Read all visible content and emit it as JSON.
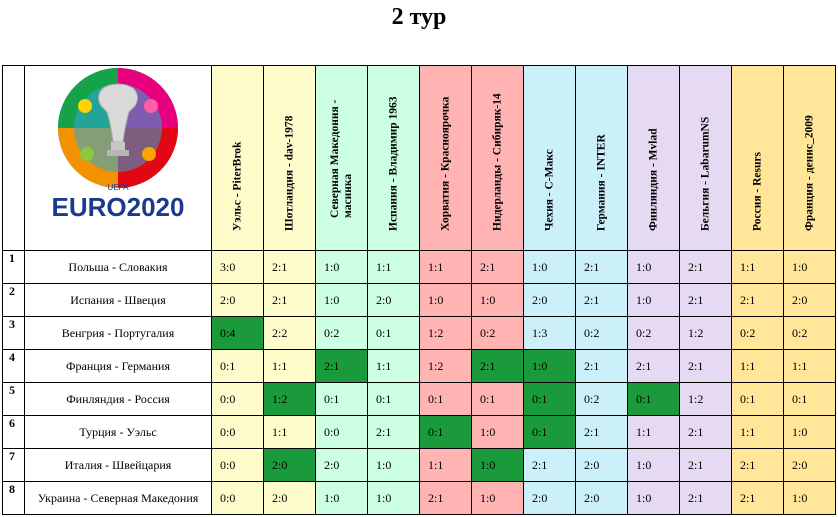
{
  "title": "2 тур",
  "logo": {
    "brand": "UEFA",
    "name": "EURO2020"
  },
  "colors": {
    "yellow": "#fffccc",
    "green": "#ccffe4",
    "pink": "#ffb3b3",
    "cyan": "#ccf0fa",
    "lilac": "#e6d9f2",
    "gold": "#ffe699",
    "hit": "#1a9a3a"
  },
  "columns": [
    {
      "label": "Уэльс - PiterBrok",
      "color": "#fffccc"
    },
    {
      "label": "Шотландия - dav-1978",
      "color": "#fffccc"
    },
    {
      "label": "Северная Македония - масинка",
      "color": "#ccffe4"
    },
    {
      "label": "Испания - Владимир 1963",
      "color": "#ccffe4"
    },
    {
      "label": "Хорватия - Красноярочка",
      "color": "#ffb3b3"
    },
    {
      "label": "Нидерланды - Сибиряк-14",
      "color": "#ffb3b3"
    },
    {
      "label": "Чехия - С-Макс",
      "color": "#ccf0fa"
    },
    {
      "label": "Германия - INTER",
      "color": "#ccf0fa"
    },
    {
      "label": "Финляндия - Mvlad",
      "color": "#e6d9f2"
    },
    {
      "label": "Бельгия - LabarumNS",
      "color": "#e6d9f2"
    },
    {
      "label": "Россия - Resurs",
      "color": "#ffe699"
    },
    {
      "label": "Франция - денис_2009",
      "color": "#ffe699"
    }
  ],
  "rows": [
    {
      "num": "1",
      "match": "Польша - Словакия",
      "scores": [
        "3:0",
        "2:1",
        "1:0",
        "1:1",
        "1:1",
        "2:1",
        "1:0",
        "2:1",
        "1:0",
        "2:1",
        "1:1",
        "1:0"
      ],
      "hits": []
    },
    {
      "num": "2",
      "match": "Испания - Швеция",
      "scores": [
        "2:0",
        "2:1",
        "1:0",
        "2:0",
        "1:0",
        "1:0",
        "2:0",
        "2:1",
        "1:0",
        "2:1",
        "2:1",
        "2:0"
      ],
      "hits": []
    },
    {
      "num": "3",
      "match": "Венгрия - Португалия",
      "scores": [
        "0:4",
        "2:2",
        "0:2",
        "0:1",
        "1:2",
        "0:2",
        "1:3",
        "0:2",
        "0:2",
        "1:2",
        "0:2",
        "0:2"
      ],
      "hits": [
        0
      ]
    },
    {
      "num": "4",
      "match": "Франция - Германия",
      "scores": [
        "0:1",
        "1:1",
        "2:1",
        "1:1",
        "1:2",
        "2:1",
        "1:0",
        "2:1",
        "2:1",
        "2:1",
        "1:1",
        "1:1"
      ],
      "hits": [
        2,
        5,
        6
      ]
    },
    {
      "num": "5",
      "match": "Финляндия - Россия",
      "scores": [
        "0:0",
        "1:2",
        "0:1",
        "0:1",
        "0:1",
        "0:1",
        "0:1",
        "0:2",
        "0:1",
        "1:2",
        "0:1",
        "0:1"
      ],
      "hits": [
        1,
        6,
        8
      ]
    },
    {
      "num": "6",
      "match": "Турция - Уэльс",
      "scores": [
        "0:0",
        "1:1",
        "0:0",
        "2:1",
        "0:1",
        "1:0",
        "0:1",
        "2:1",
        "1:1",
        "2:1",
        "1:1",
        "1:0"
      ],
      "hits": [
        4,
        6
      ]
    },
    {
      "num": "7",
      "match": "Италия - Швейцария",
      "scores": [
        "0:0",
        "2:0",
        "2:0",
        "1:0",
        "1:1",
        "1:0",
        "2:1",
        "2:0",
        "1:0",
        "2:1",
        "2:1",
        "2:0"
      ],
      "hits": [
        1,
        5
      ]
    },
    {
      "num": "8",
      "match": "Украина - Северная Македония",
      "scores": [
        "0:0",
        "2:0",
        "1:0",
        "1:0",
        "2:1",
        "1:0",
        "2:0",
        "2:0",
        "1:0",
        "2:1",
        "2:1",
        "1:0"
      ],
      "hits": []
    }
  ]
}
